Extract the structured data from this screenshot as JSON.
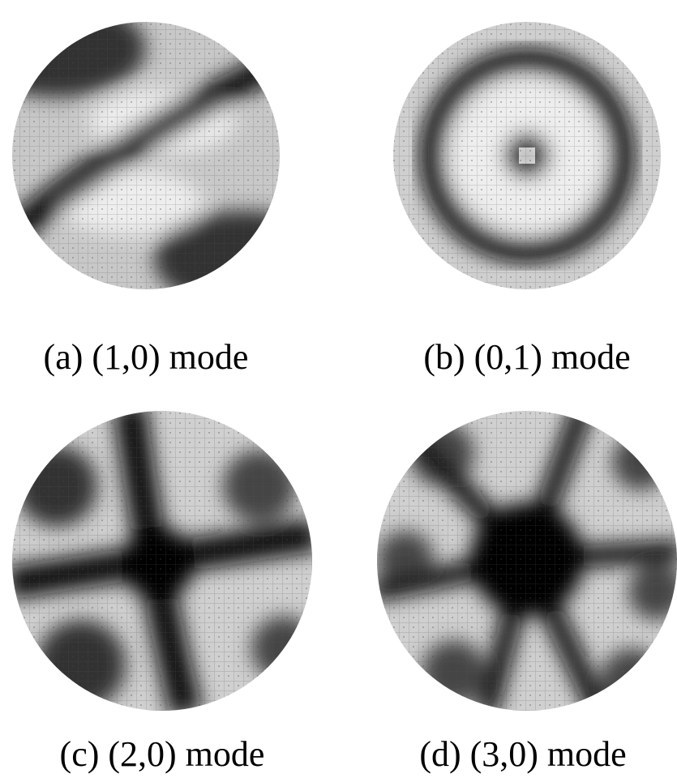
{
  "panels": [
    {
      "label": "(a) (1,0) mode"
    },
    {
      "label": "(b) (0,1) mode"
    },
    {
      "label": "(c) (2,0) mode"
    },
    {
      "label": "(d) (3,0) mode"
    }
  ]
}
